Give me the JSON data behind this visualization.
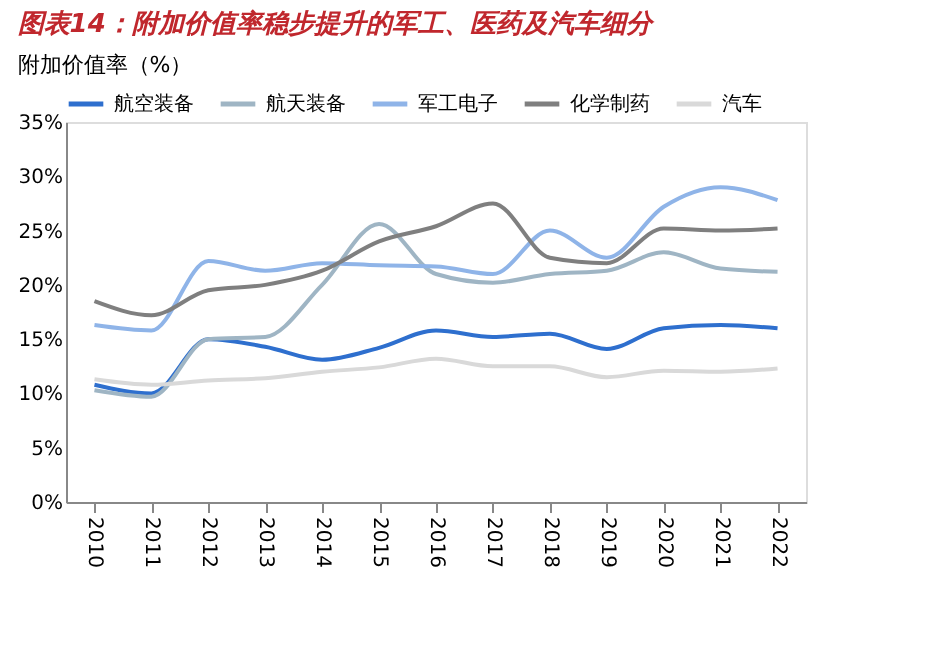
{
  "chart_data": {
    "type": "line",
    "title": "图表14：附加价值率稳步提升的军工、医药及汽车细分",
    "subtitle": "附加价值率（%）",
    "categories": [
      "2010",
      "2011",
      "2012",
      "2013",
      "2014",
      "2015",
      "2016",
      "2017",
      "2018",
      "2019",
      "2020",
      "2021",
      "2022"
    ],
    "series": [
      {
        "name": "航空装备",
        "color": "#2e6fce",
        "values": [
          10.8,
          10.0,
          15.0,
          14.3,
          13.1,
          14.2,
          15.8,
          15.2,
          15.5,
          14.1,
          16.0,
          16.3,
          16.0
        ]
      },
      {
        "name": "航天装备",
        "color": "#9fb5c4",
        "values": [
          10.3,
          9.7,
          15.0,
          15.2,
          20.0,
          25.6,
          21.0,
          20.2,
          21.0,
          21.3,
          23.0,
          21.5,
          21.2
        ]
      },
      {
        "name": "军工电子",
        "color": "#8fb4e8",
        "values": [
          16.3,
          15.8,
          22.2,
          21.3,
          22.0,
          21.8,
          21.7,
          21.0,
          25.0,
          22.5,
          27.2,
          29.0,
          27.8
        ]
      },
      {
        "name": "化学制药",
        "color": "#7f7f7f",
        "values": [
          18.5,
          17.2,
          19.5,
          20.0,
          21.3,
          24.0,
          25.4,
          27.5,
          22.5,
          22.0,
          25.2,
          25.0,
          25.2
        ]
      },
      {
        "name": "汽车",
        "color": "#d9d9d9",
        "values": [
          11.3,
          10.8,
          11.2,
          11.4,
          12.0,
          12.4,
          13.2,
          12.5,
          12.5,
          11.5,
          12.1,
          12.0,
          12.3
        ]
      }
    ],
    "ylim": [
      0,
      35
    ],
    "yticks": [
      {
        "value": 0,
        "label": "0%"
      },
      {
        "value": 5,
        "label": "5%"
      },
      {
        "value": 10,
        "label": "10%"
      },
      {
        "value": 15,
        "label": "15%"
      },
      {
        "value": 20,
        "label": "20%"
      },
      {
        "value": 25,
        "label": "25%"
      },
      {
        "value": 30,
        "label": "30%"
      },
      {
        "value": 35,
        "label": "35%"
      }
    ],
    "legend": "top",
    "grid": false,
    "marker": "none",
    "line_style": "solid"
  }
}
